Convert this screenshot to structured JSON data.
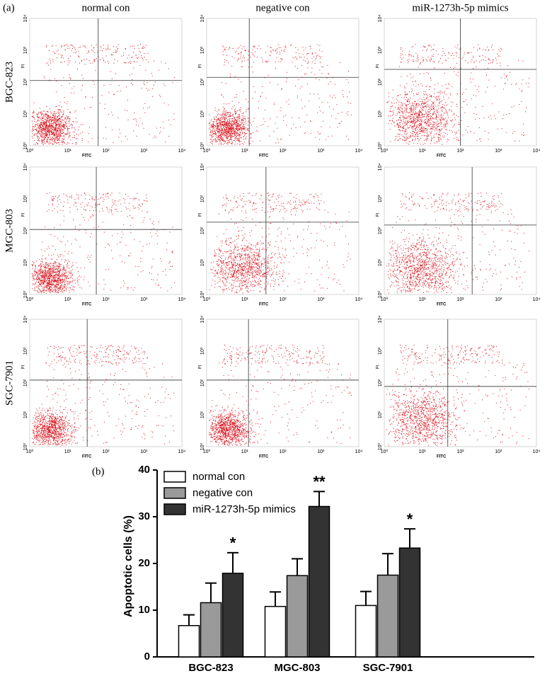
{
  "panel_a": {
    "label": "(a)",
    "columns": [
      "normal con",
      "negative con",
      "miR-1273h-5p mimics"
    ],
    "rows": [
      "BGC-823",
      "MGC-803",
      "SGC-7901"
    ],
    "xlabel": "FITC",
    "ylabel": "PI",
    "xlim": [
      0,
      4
    ],
    "ylim": [
      0,
      4
    ],
    "log_scale": true,
    "ticks": [
      {
        "value": 0,
        "label": "10⁰"
      },
      {
        "value": 1,
        "label": "10¹"
      },
      {
        "value": 2,
        "label": "10²"
      },
      {
        "value": 3,
        "label": "10³"
      },
      {
        "value": 4,
        "label": "10⁴"
      }
    ],
    "dot_color": "#d9101a",
    "gates": [
      [
        {
          "x": 1.8,
          "y": 2.05
        },
        {
          "x": 1.12,
          "y": 2.15
        },
        {
          "x": 2.0,
          "y": 2.4
        }
      ],
      [
        {
          "x": 1.75,
          "y": 2.04
        },
        {
          "x": 1.56,
          "y": 2.27
        },
        {
          "x": 2.31,
          "y": 2.18
        }
      ],
      [
        {
          "x": 1.51,
          "y": 2.09
        },
        {
          "x": 1.1,
          "y": 2.09
        },
        {
          "x": 1.67,
          "y": 1.89
        }
      ]
    ]
  },
  "chart_data": {
    "type": "bar",
    "label": "(b)",
    "ylabel": "Apoptotic cells (%)",
    "categories": [
      "BGC-823",
      "MGC-803",
      "SGC-7901"
    ],
    "series": [
      {
        "name": "normal con",
        "color": "#ffffff",
        "values": [
          6.7,
          10.8,
          11.0
        ],
        "errors": [
          2.3,
          3.1,
          3.0
        ]
      },
      {
        "name": "negative con",
        "color": "#9a9a9a",
        "values": [
          11.6,
          17.4,
          17.5
        ],
        "errors": [
          4.2,
          3.6,
          4.6
        ]
      },
      {
        "name": "miR-1273h-5p mimics",
        "color": "#333333",
        "values": [
          17.9,
          32.2,
          23.3
        ],
        "errors": [
          4.4,
          3.2,
          4.1
        ],
        "annotations": [
          "*",
          "**",
          "*"
        ]
      }
    ],
    "ylim": [
      0,
      40
    ],
    "yticks": [
      0,
      10,
      20,
      30,
      40
    ],
    "legend": "upper left"
  }
}
